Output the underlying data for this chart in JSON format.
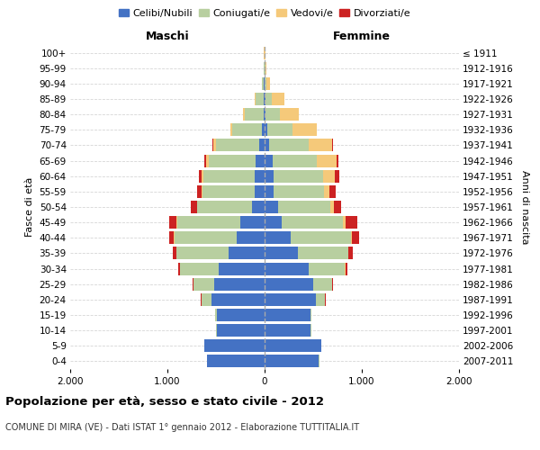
{
  "age_groups": [
    "0-4",
    "5-9",
    "10-14",
    "15-19",
    "20-24",
    "25-29",
    "30-34",
    "35-39",
    "40-44",
    "45-49",
    "50-54",
    "55-59",
    "60-64",
    "65-69",
    "70-74",
    "75-79",
    "80-84",
    "85-89",
    "90-94",
    "95-99",
    "100+"
  ],
  "birth_years": [
    "2007-2011",
    "2002-2006",
    "1997-2001",
    "1992-1996",
    "1987-1991",
    "1982-1986",
    "1977-1981",
    "1972-1976",
    "1967-1971",
    "1962-1966",
    "1957-1961",
    "1952-1956",
    "1947-1951",
    "1942-1946",
    "1937-1941",
    "1932-1936",
    "1927-1931",
    "1922-1926",
    "1917-1921",
    "1912-1916",
    "≤ 1911"
  ],
  "males": {
    "celibi": [
      590,
      620,
      490,
      490,
      550,
      520,
      470,
      370,
      290,
      250,
      130,
      100,
      100,
      90,
      60,
      30,
      10,
      8,
      5,
      2,
      2
    ],
    "coniugati": [
      3,
      5,
      10,
      20,
      100,
      210,
      400,
      540,
      640,
      650,
      560,
      540,
      530,
      480,
      440,
      300,
      190,
      80,
      20,
      5,
      2
    ],
    "vedovi": [
      0,
      0,
      0,
      0,
      2,
      2,
      2,
      2,
      3,
      5,
      5,
      10,
      15,
      30,
      30,
      20,
      25,
      15,
      5,
      2,
      1
    ],
    "divorziati": [
      0,
      0,
      0,
      0,
      5,
      10,
      20,
      30,
      50,
      80,
      60,
      40,
      30,
      20,
      10,
      5,
      0,
      0,
      0,
      0,
      0
    ]
  },
  "females": {
    "nubili": [
      560,
      580,
      470,
      470,
      530,
      500,
      450,
      340,
      270,
      180,
      140,
      90,
      90,
      80,
      50,
      25,
      8,
      5,
      3,
      2,
      2
    ],
    "coniugate": [
      2,
      4,
      8,
      15,
      90,
      195,
      375,
      520,
      620,
      630,
      540,
      520,
      510,
      460,
      400,
      260,
      145,
      70,
      15,
      4,
      2
    ],
    "vedove": [
      0,
      0,
      0,
      0,
      2,
      3,
      5,
      5,
      10,
      20,
      30,
      60,
      120,
      200,
      240,
      250,
      200,
      130,
      40,
      8,
      3
    ],
    "divorziate": [
      0,
      0,
      0,
      0,
      5,
      10,
      25,
      40,
      70,
      120,
      80,
      60,
      50,
      20,
      15,
      5,
      2,
      0,
      0,
      0,
      0
    ]
  },
  "colors": {
    "celibi_nubili": "#4472c4",
    "coniugati_e": "#b8cfa0",
    "vedovi_e": "#f5c97a",
    "divorziati_e": "#cc2222"
  },
  "xlim": 2000,
  "title": "Popolazione per età, sesso e stato civile - 2012",
  "subtitle": "COMUNE DI MIRA (VE) - Dati ISTAT 1° gennaio 2012 - Elaborazione TUTTITALIA.IT",
  "ylabel_left": "Fasce di età",
  "ylabel_right": "Anni di nascita",
  "xlabel_left": "Maschi",
  "xlabel_right": "Femmine"
}
